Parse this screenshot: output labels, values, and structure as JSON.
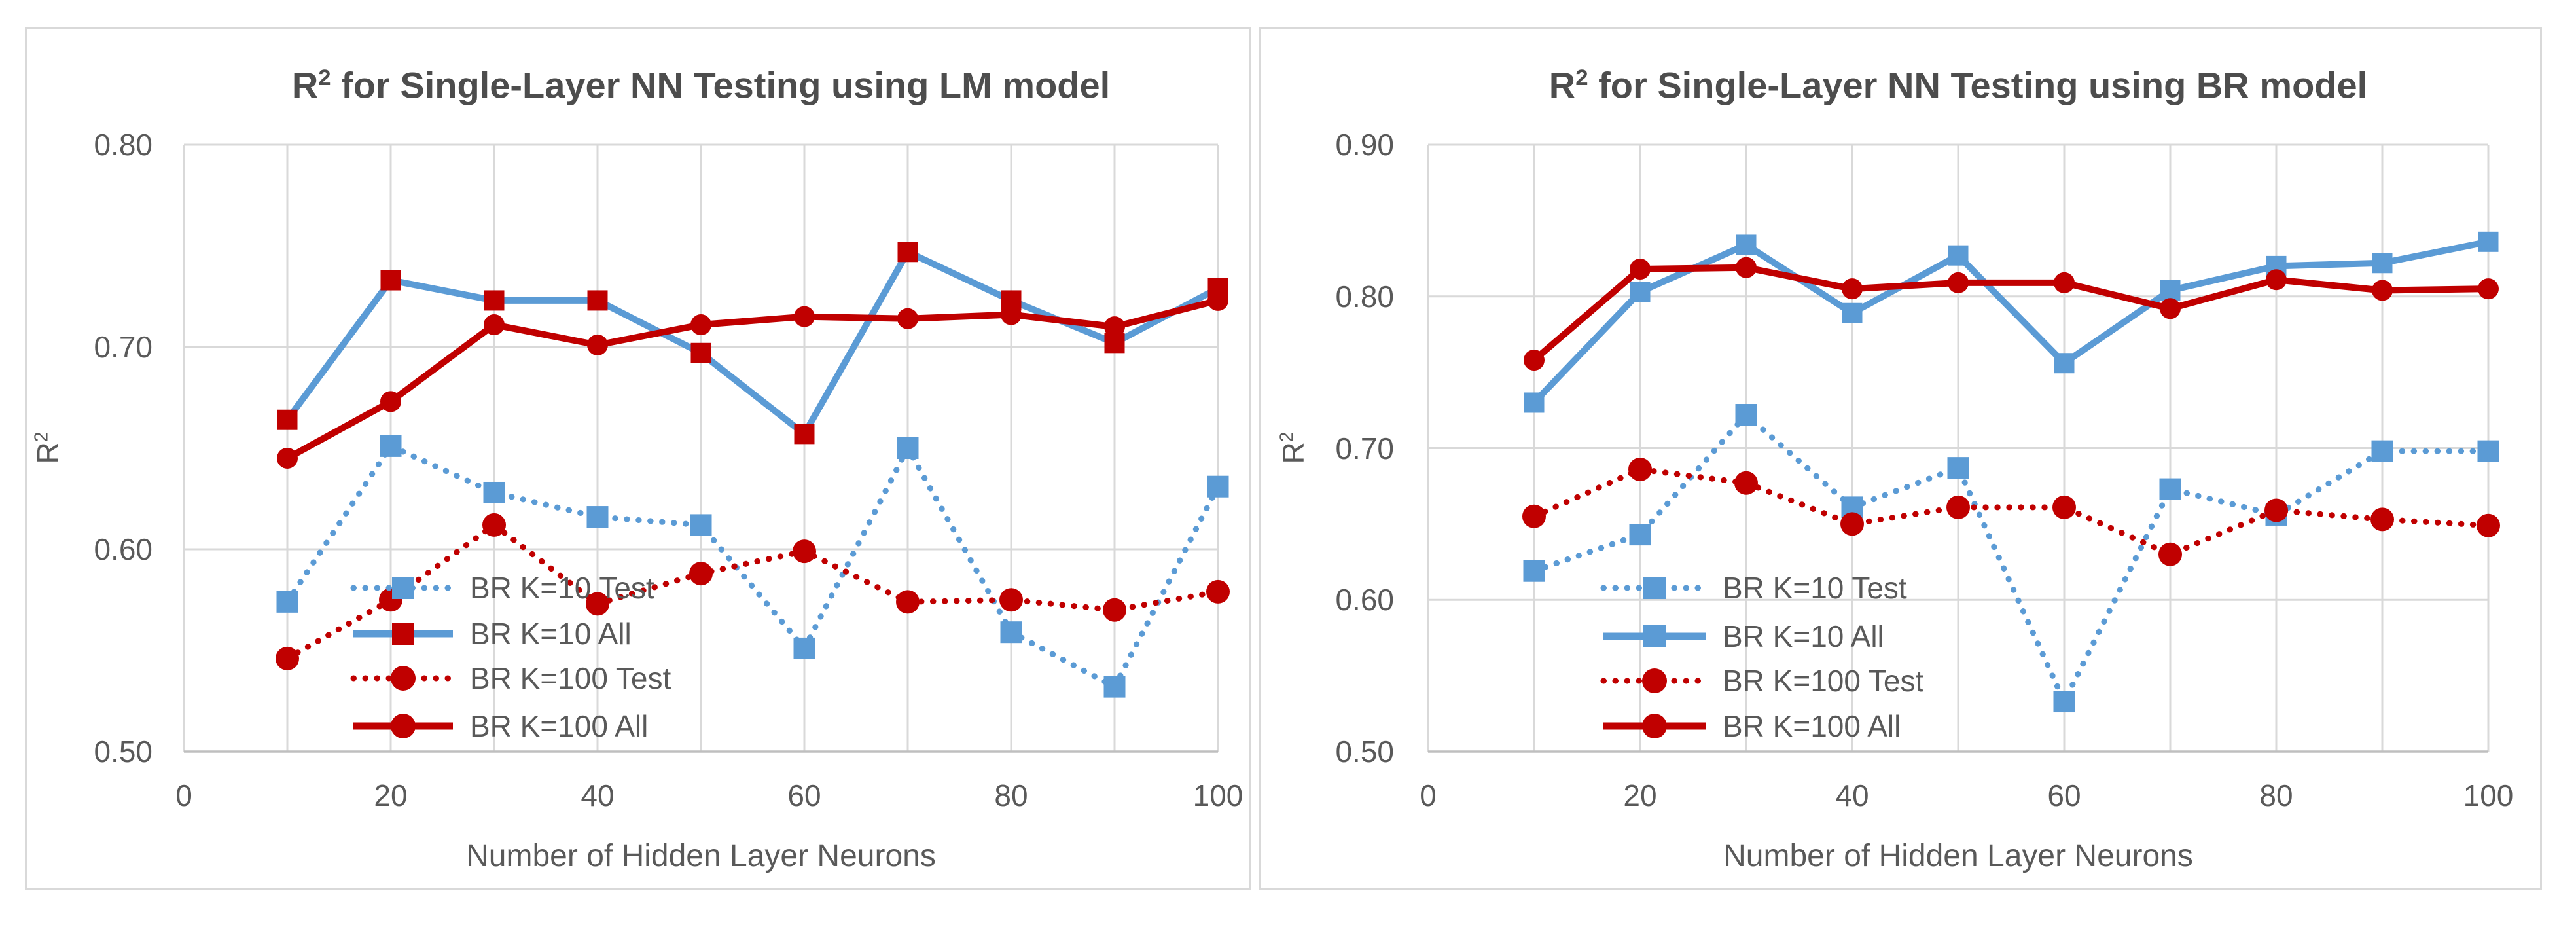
{
  "colors": {
    "blue": "#5b9bd5",
    "red": "#c00000",
    "grid": "#d9d9d9",
    "axis_line": "#bfbfbf",
    "text": "#595959",
    "title_text": "#4d4d4d"
  },
  "chart_data": [
    {
      "type": "line",
      "title_base": "R",
      "title_sup": "2",
      "title_rest": " for Single-Layer NN Testing using LM model",
      "xlabel": "Number of Hidden Layer Neurons",
      "ylabel_base": "R",
      "ylabel_sup": "2",
      "x": [
        10,
        20,
        30,
        40,
        50,
        60,
        70,
        80,
        90,
        100
      ],
      "xlim": [
        0,
        100
      ],
      "ylim": [
        0.5,
        0.8
      ],
      "xticks": [
        0,
        20,
        40,
        60,
        80,
        100
      ],
      "yticks": [
        "0.50",
        "0.60",
        "0.70",
        "0.80"
      ],
      "grid": true,
      "legend_position": "inside-bottom-center",
      "series": [
        {
          "name": "BR K=10 Test",
          "line": "dotted",
          "color": "blue",
          "marker": "square",
          "marker_color": "blue",
          "values": [
            0.574,
            0.651,
            0.628,
            0.616,
            0.612,
            0.551,
            0.65,
            0.559,
            0.532,
            0.631
          ]
        },
        {
          "name": "BR K=10 All",
          "line": "solid",
          "color": "blue",
          "marker": "square",
          "marker_color": "red",
          "values": [
            0.664,
            0.733,
            0.723,
            0.723,
            0.697,
            0.657,
            0.747,
            0.723,
            0.702,
            0.729
          ]
        },
        {
          "name": "BR K=100 Test",
          "line": "dotted",
          "color": "red",
          "marker": "circle",
          "marker_color": "red",
          "values": [
            0.546,
            0.575,
            0.612,
            0.573,
            0.588,
            0.599,
            0.574,
            0.575,
            0.57,
            0.579
          ]
        },
        {
          "name": "BR K=100 All",
          "line": "solid",
          "color": "red",
          "marker": "circle",
          "marker_color": "red",
          "values": [
            0.645,
            0.673,
            0.711,
            0.701,
            0.711,
            0.715,
            0.714,
            0.716,
            0.71,
            0.723
          ]
        }
      ]
    },
    {
      "type": "line",
      "title_base": "R",
      "title_sup": "2",
      "title_rest": " for Single-Layer NN Testing using BR model",
      "xlabel": "Number of Hidden Layer Neurons",
      "ylabel_base": "R",
      "ylabel_sup": "2",
      "x": [
        10,
        20,
        30,
        40,
        50,
        60,
        70,
        80,
        90,
        100
      ],
      "xlim": [
        0,
        100
      ],
      "ylim": [
        0.5,
        0.9
      ],
      "xticks": [
        0,
        20,
        40,
        60,
        80,
        100
      ],
      "yticks": [
        "0.50",
        "0.60",
        "0.70",
        "0.80",
        "0.90"
      ],
      "grid": true,
      "legend_position": "inside-bottom-center",
      "series": [
        {
          "name": "BR K=10 Test",
          "line": "dotted",
          "color": "blue",
          "marker": "square",
          "marker_color": "blue",
          "values": [
            0.619,
            0.643,
            0.722,
            0.661,
            0.687,
            0.533,
            0.673,
            0.656,
            0.698,
            0.698
          ]
        },
        {
          "name": "BR K=10 All",
          "line": "solid",
          "color": "blue",
          "marker": "square",
          "marker_color": "blue",
          "values": [
            0.73,
            0.803,
            0.834,
            0.789,
            0.827,
            0.756,
            0.804,
            0.82,
            0.822,
            0.836
          ]
        },
        {
          "name": "BR K=100 Test",
          "line": "dotted",
          "color": "red",
          "marker": "circle",
          "marker_color": "red",
          "values": [
            0.655,
            0.686,
            0.677,
            0.65,
            0.661,
            0.661,
            0.63,
            0.659,
            0.653,
            0.649
          ]
        },
        {
          "name": "BR K=100 All",
          "line": "solid",
          "color": "red",
          "marker": "circle",
          "marker_color": "red",
          "values": [
            0.758,
            0.818,
            0.819,
            0.805,
            0.809,
            0.809,
            0.792,
            0.811,
            0.804,
            0.805
          ]
        }
      ]
    }
  ]
}
